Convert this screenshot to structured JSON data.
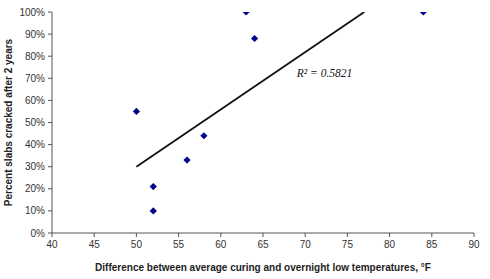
{
  "chart_data": {
    "type": "scatter",
    "x_label": "Difference between average curing and overnight low temperatures, °F",
    "y_label": "Percent slabs cracked after 2 years",
    "series": [
      {
        "type": "scatter",
        "color": "#00008B",
        "marker": "diamond",
        "x": [
          50,
          52,
          52,
          56,
          58,
          63,
          64,
          84
        ],
        "values": [
          0.55,
          0.1,
          0.21,
          0.33,
          0.44,
          1.0,
          0.88,
          1.0
        ]
      },
      {
        "type": "line",
        "color": "#111111",
        "line_style": "solid",
        "x": [
          50,
          77
        ],
        "values": [
          0.3,
          1.0
        ]
      }
    ],
    "annotations": [
      {
        "text": "R² = 0.5821",
        "x": 69,
        "y": 0.72
      }
    ],
    "xlim": [
      40,
      90
    ],
    "ylim": [
      0,
      1.0
    ],
    "xticks": [
      40,
      45,
      50,
      55,
      60,
      65,
      70,
      75,
      80,
      85,
      90
    ],
    "yticks": [
      {
        "value": 0.0,
        "label": "0%"
      },
      {
        "value": 0.1,
        "label": "10%"
      },
      {
        "value": 0.2,
        "label": "20%"
      },
      {
        "value": 0.3,
        "label": "30%"
      },
      {
        "value": 0.4,
        "label": "40%"
      },
      {
        "value": 0.5,
        "label": "50%"
      },
      {
        "value": 0.6,
        "label": "60%"
      },
      {
        "value": 0.7,
        "label": "70%"
      },
      {
        "value": 0.8,
        "label": "80%"
      },
      {
        "value": 0.9,
        "label": "90%"
      },
      {
        "value": 1.0,
        "label": "100%"
      }
    ],
    "grid": false
  }
}
